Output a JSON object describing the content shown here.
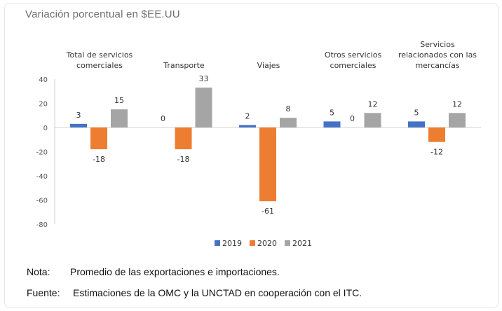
{
  "title": "Variación porcentual en $EE.UU",
  "chart_data": {
    "type": "bar",
    "categories": [
      [
        "Total de servicios",
        "comerciales"
      ],
      [
        "Transporte"
      ],
      [
        "Viajes"
      ],
      [
        "Otros servicios",
        "comerciales"
      ],
      [
        "Servicios",
        "relacionados con las",
        "mercancías"
      ]
    ],
    "series": [
      {
        "name": "2019",
        "color": "#4472c4",
        "values": [
          3,
          0,
          2,
          5,
          5
        ]
      },
      {
        "name": "2020",
        "color": "#ed7d31",
        "values": [
          -18,
          -18,
          -61,
          0,
          -12
        ]
      },
      {
        "name": "2021",
        "color": "#a5a5a5",
        "values": [
          15,
          33,
          8,
          12,
          12
        ]
      }
    ],
    "ylim": [
      -80,
      40
    ],
    "yticks": [
      40,
      20,
      0,
      -20,
      -40,
      -60,
      -80
    ],
    "legend_position": "bottom",
    "grid": false
  },
  "footer": {
    "note_label": "Nota:",
    "note_text": "Promedio de las exportaciones e importaciones.",
    "source_label": "Fuente:",
    "source_text": "Estimaciones de la OMC y la UNCTAD en cooperación con el ITC."
  }
}
